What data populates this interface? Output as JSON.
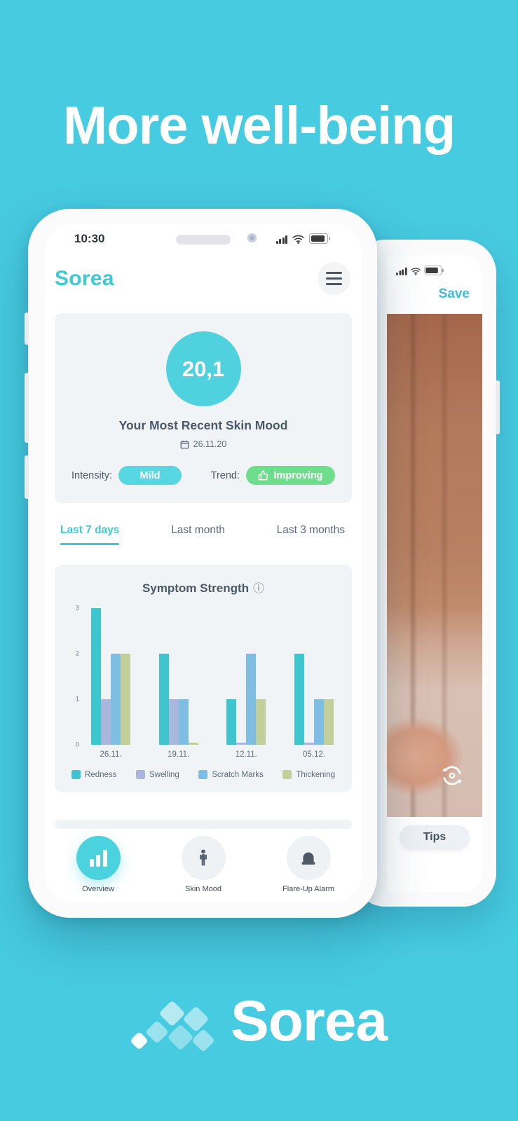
{
  "page": {
    "headline": "More well-being",
    "footer_brand": "Sorea",
    "colors": {
      "background": "#47CBE1",
      "accent_cyan": "#3EC9D5",
      "badge_cyan": "#57D7E1",
      "badge_green": "#6EDD8C",
      "nav_active": "#4AD2DE"
    }
  },
  "phone1": {
    "status_time": "10:30",
    "app_title": "Sorea",
    "mood_card": {
      "score": "20,1",
      "title": "Your Most Recent Skin Mood",
      "date": "26.11.20",
      "intensity_label": "Intensity:",
      "intensity_value": "Mild",
      "trend_label": "Trend:",
      "trend_value": "Improving"
    },
    "tabs": [
      {
        "label": "Last 7 days",
        "active": true
      },
      {
        "label": "Last month",
        "active": false
      },
      {
        "label": "Last 3 months",
        "active": false
      }
    ],
    "nav": [
      {
        "label": "Overview",
        "icon": "bar-chart-icon",
        "active": true
      },
      {
        "label": "Skin Mood",
        "icon": "person-icon",
        "active": false
      },
      {
        "label": "Flare-Up Alarm",
        "icon": "alarm-icon",
        "active": false
      }
    ]
  },
  "phone2": {
    "save_label": "Save",
    "tips_label": "Tips"
  },
  "chart_data": {
    "type": "bar",
    "title": "Symptom Strength",
    "categories": [
      "26.11.",
      "19.11.",
      "12.11.",
      "05.12."
    ],
    "series": [
      {
        "name": "Redness",
        "color": "#3EC6CE",
        "values": [
          3,
          2,
          1,
          2
        ]
      },
      {
        "name": "Swelling",
        "color": "#A9B7DC",
        "values": [
          1,
          1,
          0,
          0
        ]
      },
      {
        "name": "Scratch Marks",
        "color": "#7EBEE2",
        "values": [
          2,
          1,
          2,
          1
        ]
      },
      {
        "name": "Thickening",
        "color": "#C3CF9B",
        "values": [
          2,
          0,
          1,
          1
        ]
      }
    ],
    "ylim": [
      0,
      3
    ],
    "yticks": [
      0,
      1,
      2,
      3
    ],
    "grid": false,
    "legend_position": "bottom"
  }
}
